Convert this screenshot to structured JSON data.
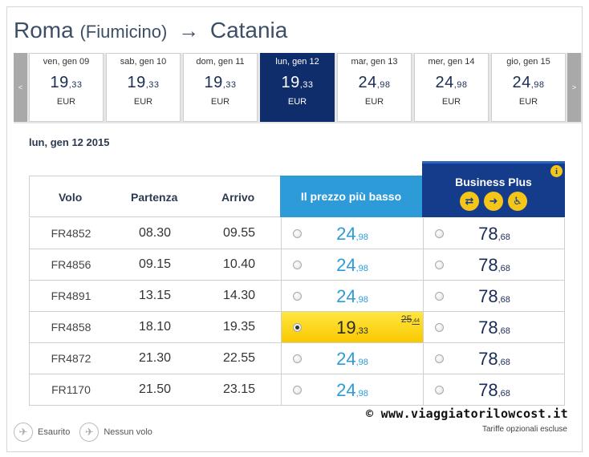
{
  "route": {
    "from": "Roma",
    "from_sub": "(Fiumicino)",
    "arrow": "→",
    "to": "Catania"
  },
  "date_nav": {
    "prev": "<",
    "next": ">"
  },
  "dates": [
    {
      "label": "ven, gen 09",
      "int": "19",
      "dec": ",33",
      "currency": "EUR",
      "selected": false
    },
    {
      "label": "sab, gen 10",
      "int": "19",
      "dec": ",33",
      "currency": "EUR",
      "selected": false
    },
    {
      "label": "dom, gen 11",
      "int": "19",
      "dec": ",33",
      "currency": "EUR",
      "selected": false
    },
    {
      "label": "lun, gen 12",
      "int": "19",
      "dec": ",33",
      "currency": "EUR",
      "selected": true
    },
    {
      "label": "mar, gen 13",
      "int": "24",
      "dec": ",98",
      "currency": "EUR",
      "selected": false
    },
    {
      "label": "mer, gen 14",
      "int": "24",
      "dec": ",98",
      "currency": "EUR",
      "selected": false
    },
    {
      "label": "gio, gen 15",
      "int": "24",
      "dec": ",98",
      "currency": "EUR",
      "selected": false
    }
  ],
  "selected_date": "lun, gen 12 2015",
  "table": {
    "headers": {
      "flight": "Volo",
      "departure": "Partenza",
      "arrival": "Arrivo",
      "lowest": "Il prezzo più basso",
      "business": "Business Plus"
    },
    "business_icons": [
      "flexible-ticket-icon",
      "fast-track-icon",
      "priority-seat-icon"
    ],
    "info_icon": "i",
    "rows": [
      {
        "flight": "FR4852",
        "dep": "08.30",
        "arr": "09.55",
        "low_int": "24",
        "low_dec": ",98",
        "bp_int": "78",
        "bp_dec": ",68",
        "selected": false,
        "old_int": "",
        "old_dec": ""
      },
      {
        "flight": "FR4856",
        "dep": "09.15",
        "arr": "10.40",
        "low_int": "24",
        "low_dec": ",98",
        "bp_int": "78",
        "bp_dec": ",68",
        "selected": false,
        "old_int": "",
        "old_dec": ""
      },
      {
        "flight": "FR4891",
        "dep": "13.15",
        "arr": "14.30",
        "low_int": "24",
        "low_dec": ",98",
        "bp_int": "78",
        "bp_dec": ",68",
        "selected": false,
        "old_int": "",
        "old_dec": ""
      },
      {
        "flight": "FR4858",
        "dep": "18.10",
        "arr": "19.35",
        "low_int": "19",
        "low_dec": ",33",
        "bp_int": "78",
        "bp_dec": ",68",
        "selected": true,
        "old_int": "25",
        "old_dec": ",44"
      },
      {
        "flight": "FR4872",
        "dep": "21.30",
        "arr": "22.55",
        "low_int": "24",
        "low_dec": ",98",
        "bp_int": "78",
        "bp_dec": ",68",
        "selected": false,
        "old_int": "",
        "old_dec": ""
      },
      {
        "flight": "FR1170",
        "dep": "21.50",
        "arr": "23.15",
        "low_int": "24",
        "low_dec": ",98",
        "bp_int": "78",
        "bp_dec": ",68",
        "selected": false,
        "old_int": "",
        "old_dec": ""
      }
    ]
  },
  "legend": {
    "sold_out": "Esaurito",
    "no_flight": "Nessun volo"
  },
  "watermark": "© www.viaggiatorilowcost.it",
  "footer_note": "Tariffe opzionali escluse",
  "colors": {
    "selected_date_bg": "#102d6b",
    "lowest_header": "#2d9bd8",
    "business_header": "#143c8a",
    "highlight": "#f9c800"
  }
}
